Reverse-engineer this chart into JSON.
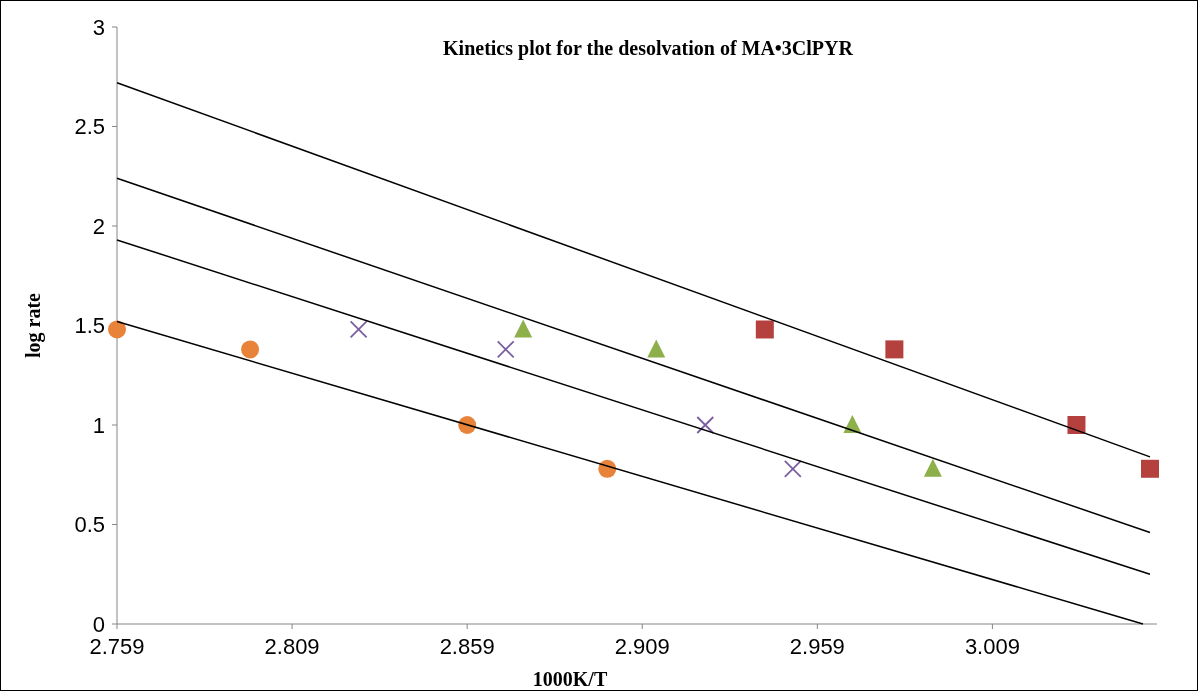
{
  "chart_data": {
    "type": "scatter",
    "title": "Kinetics plot for the desolvation of MA•3ClPYR",
    "xlabel": "1000K/T",
    "ylabel": "log rate",
    "xlim": [
      2.759,
      3.056
    ],
    "xticks": [
      2.759,
      2.809,
      2.859,
      2.909,
      2.959,
      3.009
    ],
    "ylim": [
      0,
      3
    ],
    "yticks": [
      0,
      0.5,
      1,
      1.5,
      2,
      2.5,
      3
    ],
    "grid": false,
    "series": [
      {
        "marker": "circle",
        "color": "#e8833a",
        "x": [
          2.759,
          2.797,
          2.859,
          2.899
        ],
        "values": [
          1.48,
          1.38,
          1.0,
          0.78
        ]
      },
      {
        "marker": "cross",
        "color": "#7a5fa0",
        "x": [
          2.828,
          2.87,
          2.927,
          2.952
        ],
        "values": [
          1.48,
          1.38,
          1.0,
          0.78
        ]
      },
      {
        "marker": "triangle",
        "color": "#8db04a",
        "x": [
          2.875,
          2.913,
          2.969,
          2.992
        ],
        "values": [
          1.48,
          1.38,
          1.0,
          0.78
        ]
      },
      {
        "marker": "square",
        "color": "#b5413f",
        "x": [
          2.944,
          2.981,
          3.033,
          3.054
        ],
        "values": [
          1.48,
          1.38,
          1.0,
          0.78
        ]
      },
      {
        "type": "line",
        "marker": "none",
        "line_style": "solid",
        "color": "#000000",
        "x": [
          2.759,
          3.052
        ],
        "values": [
          1.52,
          0
        ]
      },
      {
        "type": "line",
        "marker": "none",
        "line_style": "solid",
        "color": "#000000",
        "x": [
          2.759,
          3.054
        ],
        "values": [
          1.93,
          0.25
        ]
      },
      {
        "type": "line",
        "marker": "none",
        "line_style": "solid",
        "color": "#000000",
        "x": [
          2.759,
          3.054
        ],
        "values": [
          2.24,
          0.46
        ]
      },
      {
        "type": "line",
        "marker": "none",
        "line_style": "solid",
        "color": "#000000",
        "x": [
          2.759,
          3.054
        ],
        "values": [
          2.72,
          0.84
        ]
      }
    ]
  }
}
